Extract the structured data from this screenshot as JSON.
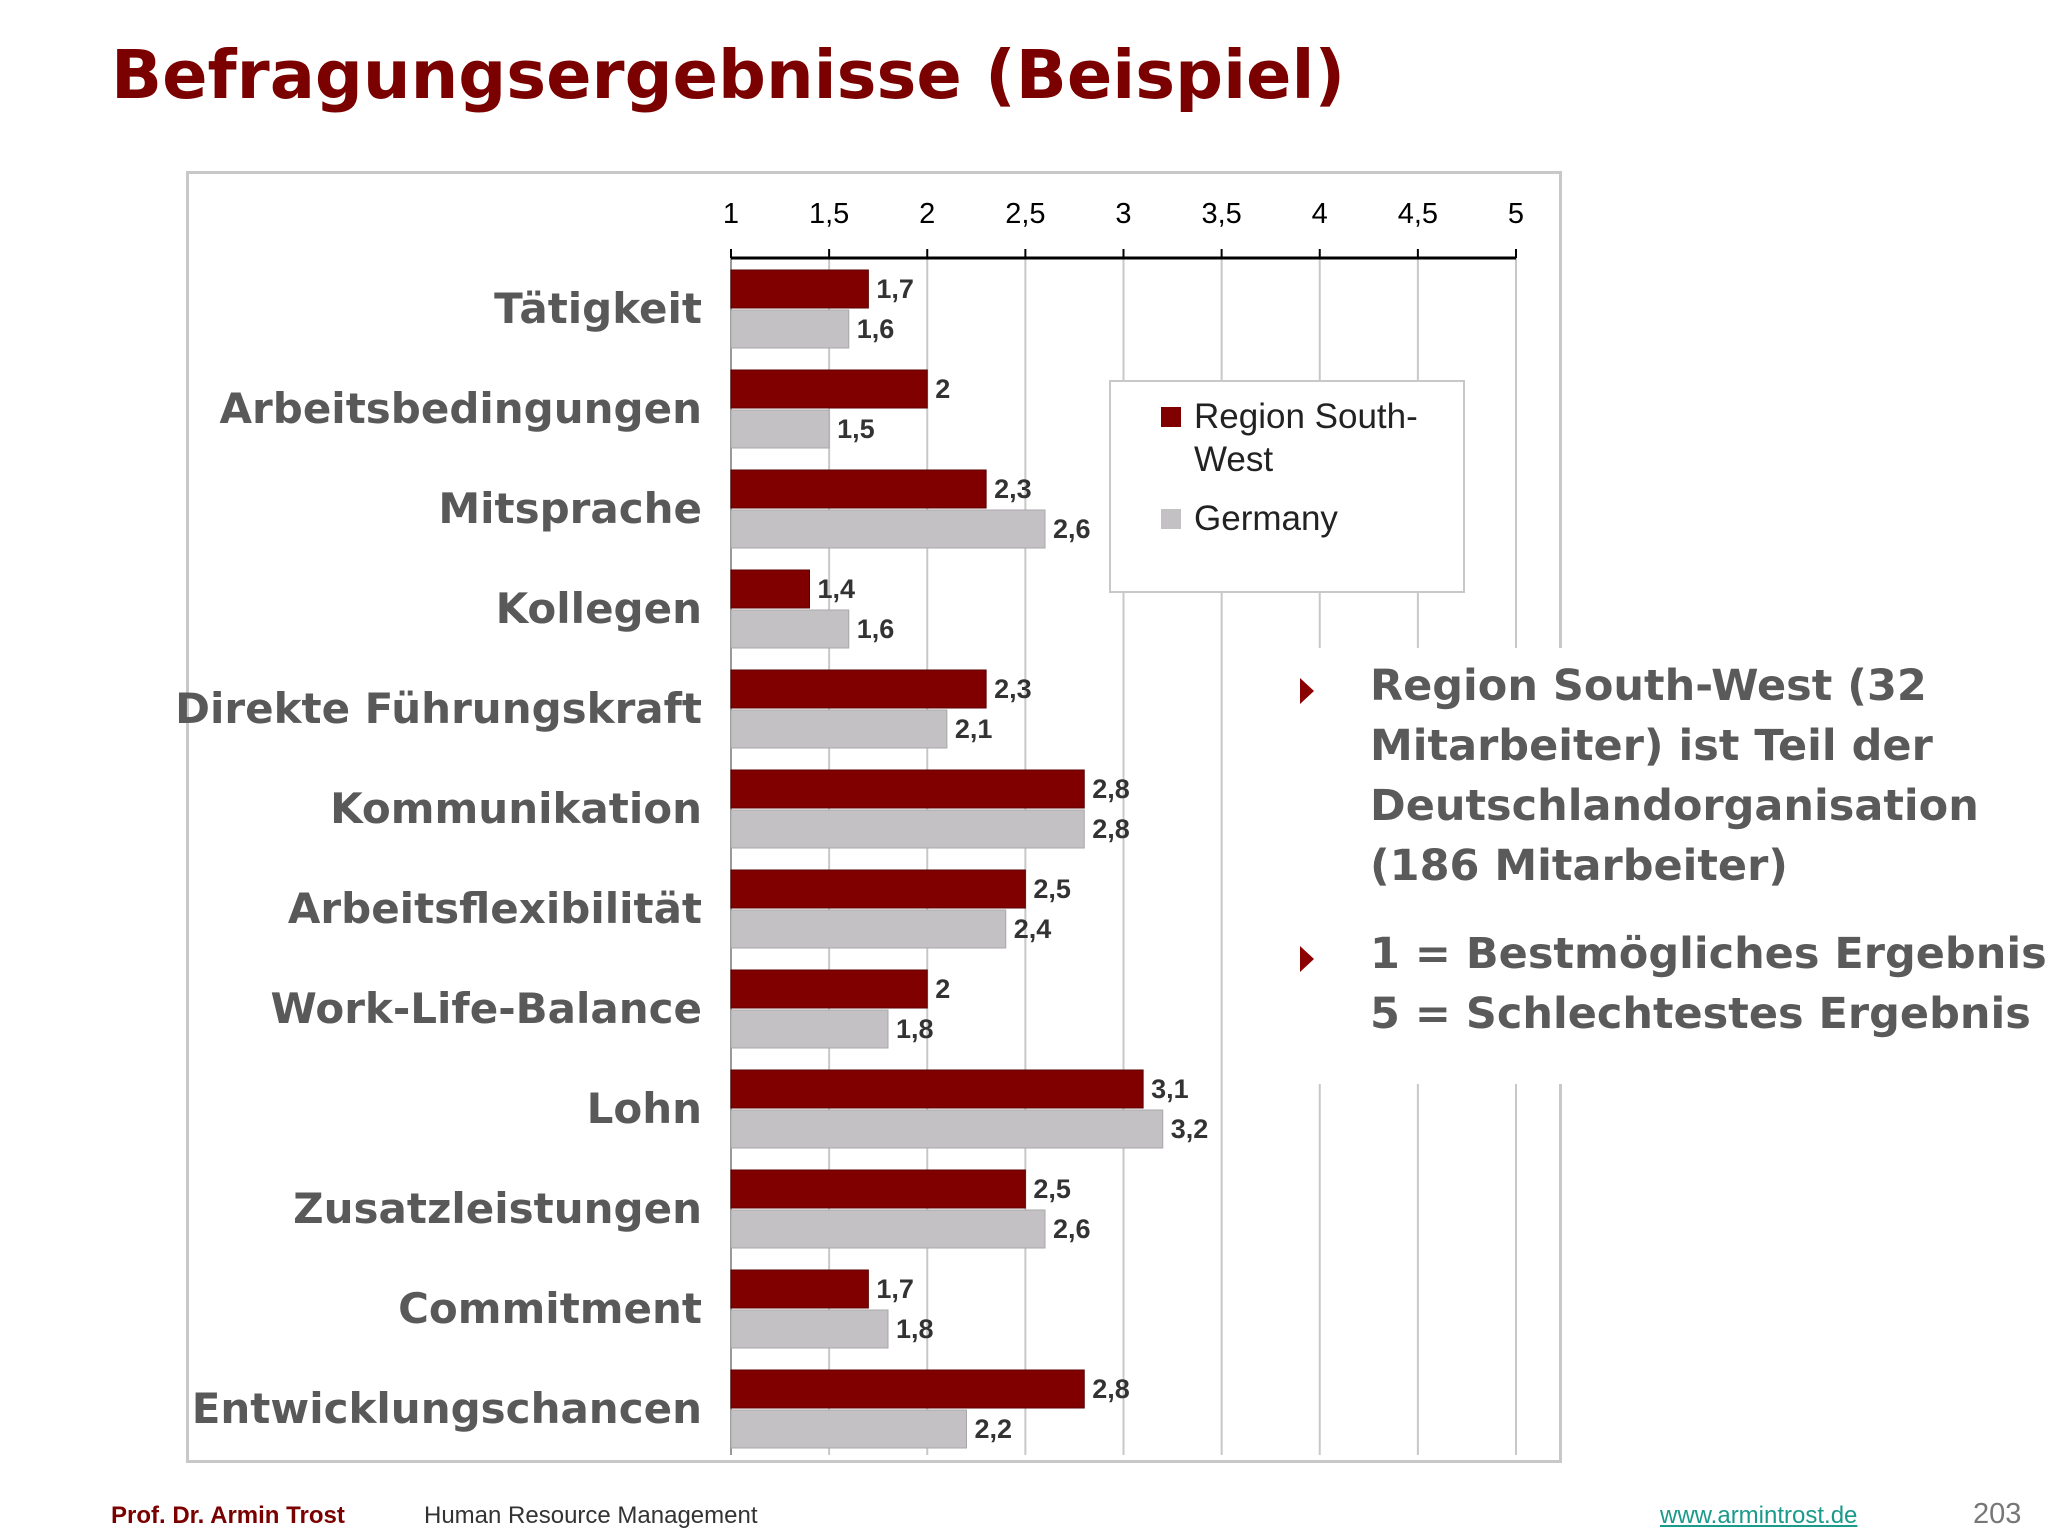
{
  "slide": {
    "title": "Befragungsergebnisse (Beispiel)"
  },
  "chart_data": {
    "type": "bar",
    "orientation": "horizontal",
    "categories": [
      "Tätigkeit",
      "Arbeitsbedingungen",
      "Mitsprache",
      "Kollegen",
      "Direkte Führungskraft",
      "Kommunikation",
      "Arbeitsflexibilität",
      "Work-Life-Balance",
      "Lohn",
      "Zusatzleistungen",
      "Commitment",
      "Entwicklungschancen"
    ],
    "series": [
      {
        "name": "Region South-West",
        "color": "#800000",
        "values": [
          1.7,
          2,
          2.3,
          1.4,
          2.3,
          2.8,
          2.5,
          2,
          3.1,
          2.5,
          1.7,
          2.8
        ],
        "labels": [
          "1,7",
          "2",
          "2,3",
          "1,4",
          "2,3",
          "2,8",
          "2,5",
          "2",
          "3,1",
          "2,5",
          "1,7",
          "2,8"
        ]
      },
      {
        "name": "Germany",
        "color": "#c3c1c3",
        "values": [
          1.6,
          1.5,
          2.6,
          1.6,
          2.1,
          2.8,
          2.4,
          1.8,
          3.2,
          2.6,
          1.8,
          2.2
        ],
        "labels": [
          "1,6",
          "1,5",
          "2,6",
          "1,6",
          "2,1",
          "2,8",
          "2,4",
          "1,8",
          "3,2",
          "2,6",
          "1,8",
          "2,2"
        ]
      }
    ],
    "xlim": [
      1,
      5
    ],
    "xticks": [
      1,
      1.5,
      2,
      2.5,
      3,
      3.5,
      4,
      4.5,
      5
    ],
    "xtick_labels": [
      "1",
      "1,5",
      "2",
      "2,5",
      "3",
      "3,5",
      "4",
      "4,5",
      "5"
    ],
    "axis_position": "top",
    "grid": "vertical",
    "legend_position": "top-right",
    "title": "",
    "xlabel": "",
    "ylabel": ""
  },
  "legend": {
    "entries": [
      {
        "line1": "Region South-",
        "line2": "West",
        "color": "#800000"
      },
      {
        "line1": "Germany",
        "line2": "",
        "color": "#c3c1c3"
      }
    ]
  },
  "notes": [
    {
      "lines": [
        "Region South-West (32",
        "Mitarbeiter) ist Teil der",
        "Deutschlandorganisation",
        "(186 Mitarbeiter)"
      ]
    },
    {
      "lines": [
        "1 = Bestmögliches Ergebnis",
        "5 = Schlechtestes Ergebnis"
      ]
    }
  ],
  "footer": {
    "author": "Prof. Dr. Armin Trost",
    "course": "Human Resource Management",
    "url": "www.armintrost.de",
    "page_number": "203"
  }
}
